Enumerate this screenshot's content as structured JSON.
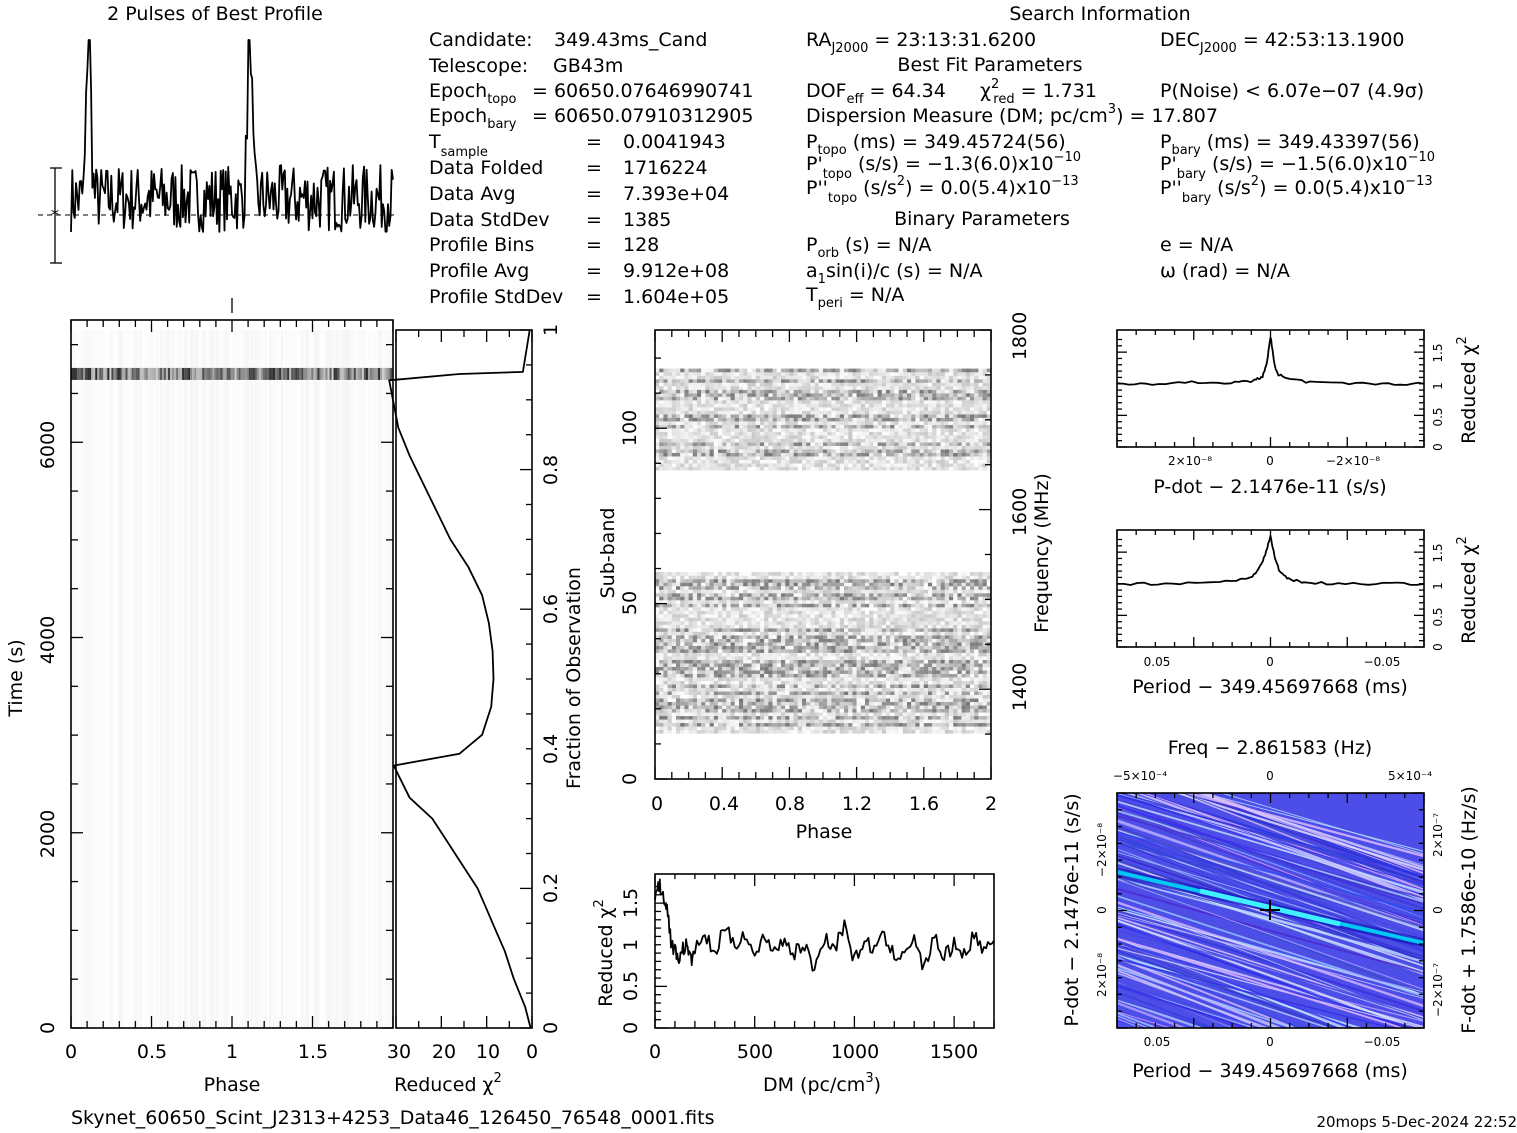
{
  "header": {
    "profile_title": "2 Pulses of Best Profile",
    "search_title": "Search Information",
    "best_fit_title": "Best Fit Parameters",
    "binary_title": "Binary Parameters",
    "filename": "Skynet_60650_Scint_J2313+4253_Data46_126450_76548_0001.fits",
    "footer_right": "20mops   5-Dec-2024 22:52"
  },
  "info_left": [
    {
      "label": "Candidate:",
      "value": "349.43ms_Cand"
    },
    {
      "label": "Telescope:",
      "value": "GB43m"
    },
    {
      "label": "Epoch",
      "sub": "topo",
      "value": "= 60650.0764699074​1"
    },
    {
      "label": "Epoch",
      "sub": "bary",
      "value": "= 60650.07910312905"
    },
    {
      "label": "T",
      "sub": "sample",
      "value": "0.0041943"
    },
    {
      "label": "Data Folded",
      "value": "1716224"
    },
    {
      "label": "Data Avg",
      "value": "7.393e+04"
    },
    {
      "label": "Data StdDev",
      "value": "1385"
    },
    {
      "label": "Profile Bins",
      "value": "128"
    },
    {
      "label": "Profile Avg",
      "value": "9.912e+08"
    },
    {
      "label": "Profile StdDev",
      "value": "1.604e+05"
    }
  ],
  "info_mid": {
    "ra": "= 23:13:31.6200",
    "dec": "= 42:53:13.1900",
    "dof": "= 64.34",
    "chi2": "= 1.731",
    "pnoise": "P(Noise) < 6.07e−07   (4.9σ)",
    "dm_line": "Dispersion Measure (DM; pc/cm",
    "dm_value": ") = 17.807",
    "ptopo": "(ms) =  349.45724(56)",
    "pbary": "(ms) =  349.43397(56)",
    "pdtopo_val": "(s/s) = −1.3(6.0)x10",
    "pdtopo_exp": "−10",
    "pdbary_val": "(s/s) = −1.5(6.0)x10",
    "pdbary_exp": "−10",
    "pddtopo_val": "(s/s",
    "pddtopo_val2": ") = 0.0(5.4)x10",
    "pddtopo_exp": "−13",
    "pddbary_val2": ") = 0.0(5.4)x10",
    "pddbary_exp": "−13",
    "porb": "(s) = N/A",
    "e": "e = N/A",
    "asini": "a",
    "asini_rest": "sin(i)/c (s) = N/A",
    "omega": "ω (rad) = N/A",
    "tperi": "= N/A"
  },
  "axis_labels": {
    "time": "Time (s)",
    "phase": "Phase",
    "reduced_chi2": "Reduced χ",
    "fraction": "Fraction of Observation",
    "subband": "Sub-band",
    "frequency": "Frequency (MHz)",
    "dm": "DM (pc/cm",
    "pdot": "P-dot − 2.1476e-11 (s/s)",
    "period": "Period − 349.45697668 (ms)",
    "freq_top": "Freq − 2.861583 (Hz)",
    "pdot_left": "P-dot − 2.1476e-11 (s/s)",
    "fdot_right": "F-dot + 1.7586e-10 (Hz/s)"
  },
  "ticks": {
    "time": [
      "0",
      "2000",
      "4000",
      "6000"
    ],
    "phase_big": [
      "0",
      "0.5",
      "1",
      "1.5",
      "2"
    ],
    "chi2_bottom": [
      "30",
      "20",
      "10",
      "0"
    ],
    "fraction": [
      "0",
      "0.2",
      "0.4",
      "0.6",
      "0.8",
      "1"
    ],
    "subband": [
      "0",
      "50",
      "100"
    ],
    "freq": [
      "1400",
      "1600",
      "1800"
    ],
    "phase_small": [
      "0",
      "0.4",
      "0.8",
      "1.2",
      "1.6",
      "2"
    ],
    "dm": [
      "0",
      "500",
      "1000",
      "1500"
    ],
    "chi2_dm": [
      "0",
      "0.5",
      "1",
      "1.5"
    ],
    "chi2_small": [
      "0",
      "0.5",
      "1",
      "1.5"
    ],
    "pdot_x": [
      "2×10⁻⁸",
      "0",
      "−2×10⁻⁸"
    ],
    "period_x": [
      "0.05",
      "0",
      "−0.05"
    ],
    "freq_x": [
      "−5×10⁻⁴",
      "0",
      "5×10⁻⁴"
    ],
    "pdot_y": [
      "−2×10⁻⁸",
      "0",
      "2×10⁻⁸"
    ],
    "fdot_y": [
      "2×10⁻⁷",
      "0",
      "−2×10⁻⁷"
    ]
  },
  "chart_data": [
    {
      "type": "line",
      "name_key": "pulse_profile",
      "x": [
        0,
        2
      ],
      "note": "two pulses at phase ~0.1 and ~1.1",
      "ylim": [
        0,
        1
      ],
      "peaks_phase": [
        0.11,
        1.11
      ]
    },
    {
      "type": "heatmap",
      "name_key": "time_vs_phase",
      "xlabel": "Phase",
      "ylabel": "Time (s)",
      "xlim": [
        0,
        2
      ],
      "ylim": [
        0,
        7150
      ],
      "bright_row_time": 6700
    },
    {
      "type": "line",
      "name_key": "chi2_vs_time",
      "xlabel": "Reduced χ²",
      "ylabel": "Fraction of Observation",
      "xlim": [
        30,
        0
      ],
      "ylim": [
        0,
        1
      ],
      "x": [
        0.3,
        1.5,
        4,
        6,
        8,
        10,
        12,
        16,
        19,
        22,
        27,
        30.5,
        16,
        11,
        9,
        8.5,
        8.7,
        9.5,
        11,
        14,
        18,
        21,
        24,
        27,
        29.5,
        31.5,
        16,
        2,
        0.5
      ],
      "y": [
        0.0,
        0.03,
        0.07,
        0.11,
        0.14,
        0.17,
        0.2,
        0.24,
        0.27,
        0.3,
        0.33,
        0.376,
        0.393,
        0.42,
        0.46,
        0.5,
        0.54,
        0.58,
        0.62,
        0.66,
        0.7,
        0.74,
        0.78,
        0.82,
        0.86,
        0.928,
        0.937,
        0.94,
        1.0
      ]
    },
    {
      "type": "heatmap",
      "name_key": "subband_vs_phase",
      "xlabel": "Phase",
      "ylabel": "Sub-band",
      "xlim": [
        0,
        2
      ],
      "ylim": [
        0,
        128
      ],
      "active_bands": [
        [
          13,
          58
        ],
        [
          88,
          116
        ]
      ]
    },
    {
      "type": "line",
      "name_key": "chi2_vs_dm",
      "xlabel": "DM (pc/cm³)",
      "ylabel": "Reduced χ²",
      "xlim": [
        0,
        1700
      ],
      "ylim": [
        0,
        1.85
      ],
      "x": [
        0,
        20,
        40,
        60,
        80,
        100,
        120,
        140,
        160,
        180,
        200,
        250,
        300,
        350,
        400,
        450,
        500,
        550,
        600,
        650,
        700,
        750,
        800,
        850,
        900,
        950,
        1000,
        1050,
        1100,
        1150,
        1200,
        1250,
        1300,
        1350,
        1400,
        1450,
        1500,
        1550,
        1600,
        1650,
        1700
      ],
      "y": [
        1.6,
        1.72,
        1.6,
        1.45,
        1.05,
        0.92,
        0.85,
        0.95,
        1.0,
        0.8,
        0.95,
        1.1,
        0.9,
        1.2,
        1.0,
        1.15,
        0.85,
        1.1,
        0.95,
        1.05,
        0.9,
        1.0,
        0.7,
        1.1,
        0.95,
        1.25,
        0.8,
        1.05,
        0.95,
        1.1,
        0.85,
        0.95,
        1.05,
        0.7,
        1.1,
        0.85,
        1.0,
        0.9,
        1.1,
        0.95,
        1.05
      ]
    },
    {
      "type": "line",
      "name_key": "chi2_vs_pdot",
      "xlabel": "P-dot − 2.1476e-11 (s/s)",
      "ylabel": "Reduced χ²",
      "xlim": [
        3.9e-08,
        -3.9e-08
      ],
      "ylim": [
        0,
        1.85
      ],
      "x": [
        3.9e-08,
        3e-08,
        2e-08,
        1e-08,
        4e-09,
        2e-09,
        1e-09,
        0,
        -1e-09,
        -2e-09,
        -4e-09,
        -1e-08,
        -2e-08,
        -3e-08,
        -3.9e-08
      ],
      "y": [
        1.0,
        1.0,
        1.02,
        1.02,
        1.05,
        1.12,
        1.3,
        1.75,
        1.3,
        1.15,
        1.08,
        1.02,
        1.0,
        1.0,
        1.0
      ]
    },
    {
      "type": "line",
      "name_key": "chi2_vs_period",
      "xlabel": "Period − 349.45697668 (ms)",
      "ylabel": "Reduced χ²",
      "xlim": [
        0.068,
        -0.068
      ],
      "ylim": [
        0,
        1.85
      ],
      "x": [
        0.068,
        0.05,
        0.03,
        0.015,
        0.008,
        0.004,
        0.002,
        0,
        -0.002,
        -0.004,
        -0.008,
        -0.015,
        -0.03,
        -0.05,
        -0.068
      ],
      "y": [
        1.0,
        1.0,
        1.02,
        1.05,
        1.12,
        1.3,
        1.5,
        1.75,
        1.4,
        1.2,
        1.08,
        1.02,
        1.0,
        1.0,
        1.0
      ]
    },
    {
      "type": "heatmap",
      "name_key": "period_pdot_plane",
      "xlabel": "Period − 349.45697668 (ms)",
      "ylabel": "P-dot − 2.1476e-11 (s/s)",
      "xlim": [
        0.068,
        -0.068
      ],
      "ylim": [
        3.9e-08,
        -3.9e-08
      ],
      "best": [
        0,
        0
      ]
    }
  ]
}
